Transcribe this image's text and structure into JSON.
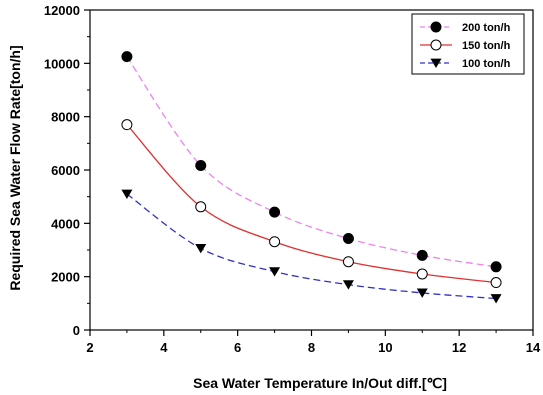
{
  "chart_data": {
    "type": "line",
    "xlabel": "Sea Water Temperature In/Out diff.[℃]",
    "ylabel": "Required Sea Water Flow Rate[ton/h]",
    "xlim": [
      2,
      14
    ],
    "ylim": [
      0,
      12000
    ],
    "x_ticks": [
      2,
      4,
      6,
      8,
      10,
      12,
      14
    ],
    "y_ticks": [
      0,
      2000,
      4000,
      6000,
      8000,
      10000,
      12000
    ],
    "grid": false,
    "legend_position": "top-right",
    "x": [
      3,
      5,
      7,
      9,
      11,
      13
    ],
    "series": [
      {
        "name": "200 ton/h",
        "marker": "filled-circle",
        "line_color": "#ee82ee",
        "line_style": "dashed",
        "values": [
          10250,
          6170,
          4420,
          3430,
          2800,
          2370
        ]
      },
      {
        "name": "150 ton/h",
        "marker": "open-circle",
        "line_color": "#e03030",
        "line_style": "solid",
        "values": [
          7700,
          4620,
          3310,
          2560,
          2100,
          1780
        ]
      },
      {
        "name": "100 ton/h",
        "marker": "filled-triangle-down",
        "line_color": "#3030cc",
        "line_style": "dashed",
        "values": [
          5100,
          3060,
          2190,
          1700,
          1390,
          1180
        ]
      }
    ]
  }
}
